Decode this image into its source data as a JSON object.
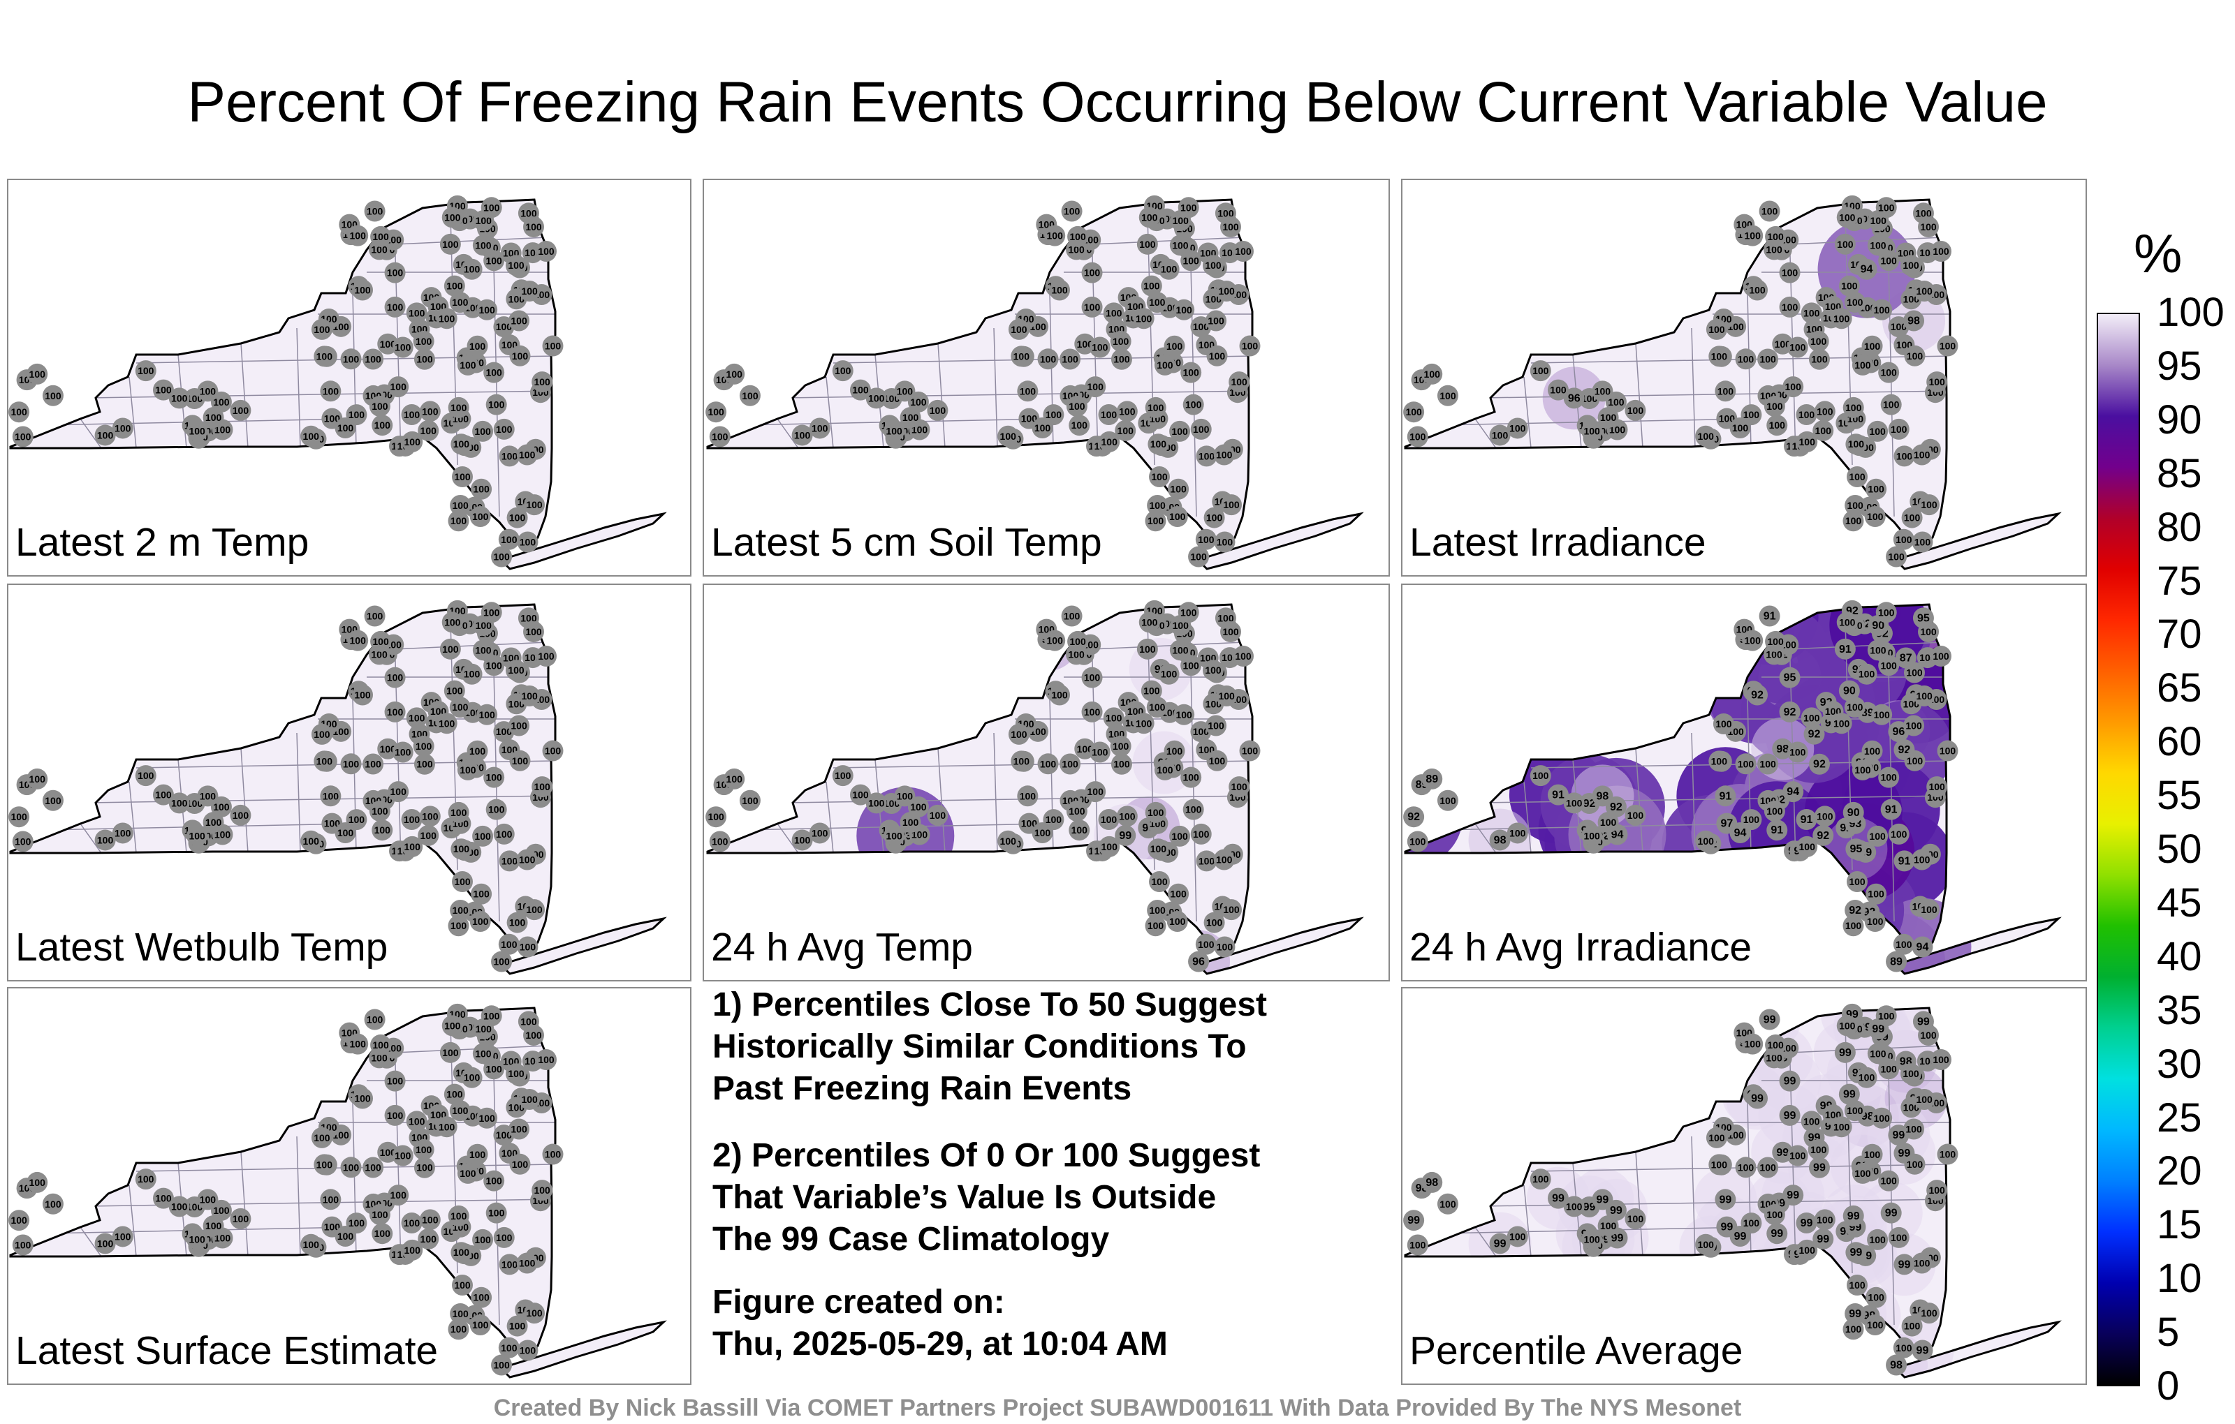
{
  "title": "Percent Of Freezing Rain Events Occurring Below Current Variable Value",
  "footer": "Created By Nick Bassill Via COMET Partners Project SUBAWD001611 With Data Provided By The NYS Mesonet",
  "notes": {
    "note1": "1) Percentiles Close To 50 Suggest\nHistorically Similar Conditions To\nPast Freezing Rain Events",
    "note2": "2) Percentiles Of 0 Or 100 Suggest\nThat Variable’s Value Is Outside\nThe 99 Case Climatology",
    "created": "Figure created on:\nThu, 2025-05-29, at 10:04 AM"
  },
  "colorbar": {
    "unit": "%",
    "ticks": [
      "0",
      "5",
      "10",
      "15",
      "20",
      "25",
      "30",
      "35",
      "40",
      "45",
      "50",
      "55",
      "60",
      "65",
      "70",
      "75",
      "80",
      "85",
      "90",
      "95",
      "100"
    ],
    "colors": [
      "#000000",
      "#08005a",
      "#0000b0",
      "#0030ff",
      "#0080ff",
      "#00b8ff",
      "#00e0e0",
      "#00d090",
      "#00b030",
      "#20c000",
      "#90e000",
      "#e8f000",
      "#ffd800",
      "#ff9a00",
      "#ff6000",
      "#ff2800",
      "#e00000",
      "#b0002a",
      "#72008c",
      "#4a0fa0",
      "#a888c8",
      "#f3eef8"
    ]
  },
  "chart_data": [
    {
      "type": "heatmap",
      "title": "Latest 2 m Temp",
      "scale": [
        0,
        100
      ],
      "station_values": [
        100,
        100,
        100,
        100,
        100,
        100,
        100,
        100,
        100,
        100,
        100,
        100,
        100,
        100,
        100,
        100,
        100,
        100,
        100,
        100,
        100,
        100,
        100,
        100,
        100,
        100,
        100,
        100,
        100,
        100,
        100,
        100,
        100,
        100,
        100,
        100,
        100,
        100,
        100,
        100,
        100,
        100,
        100,
        100,
        100,
        100,
        100,
        100,
        100,
        100,
        100,
        100,
        100,
        100,
        100,
        100,
        100,
        100,
        100,
        100,
        100,
        100,
        100,
        100,
        100,
        100,
        100,
        100,
        100,
        100,
        100,
        100,
        100,
        100,
        100,
        100,
        100,
        100,
        100,
        100,
        100,
        100,
        100,
        100,
        100,
        100,
        100,
        100,
        100,
        100,
        100,
        100,
        100,
        100,
        100,
        100,
        100,
        100,
        100,
        100,
        100,
        100,
        100,
        100,
        100,
        100,
        100,
        100,
        100,
        100,
        100,
        100,
        100,
        100,
        100,
        100,
        100,
        100,
        100,
        100,
        100,
        100,
        100,
        100,
        100,
        100,
        100,
        100,
        100,
        100,
        100
      ]
    },
    {
      "type": "heatmap",
      "title": "Latest 5 cm Soil Temp",
      "scale": [
        0,
        100
      ],
      "station_values": [
        100,
        100,
        100,
        100,
        100,
        100,
        100,
        100,
        100,
        100,
        100,
        100,
        100,
        100,
        100,
        100,
        100,
        100,
        100,
        100,
        100,
        100,
        100,
        100,
        100,
        100,
        100,
        100,
        100,
        100,
        100,
        100,
        100,
        100,
        100,
        100,
        100,
        100,
        100,
        100,
        100,
        100,
        100,
        100,
        100,
        100,
        100,
        100,
        100,
        100,
        100,
        100,
        100,
        100,
        100,
        100,
        100,
        100,
        100,
        100,
        100,
        100,
        100,
        100,
        100,
        100,
        100,
        100,
        100,
        100,
        100,
        100,
        100,
        100,
        100,
        100,
        100,
        100,
        100,
        100,
        100,
        100,
        100,
        100,
        100,
        100,
        100,
        100,
        100,
        100,
        100,
        100,
        100,
        100,
        100,
        100,
        100,
        100,
        100,
        100,
        100,
        100,
        100,
        100,
        100,
        100,
        100,
        100,
        100,
        100,
        100,
        100,
        100,
        100,
        100,
        100,
        100,
        100,
        100,
        100,
        100,
        100,
        100,
        100,
        100,
        100,
        100,
        100,
        100,
        100,
        100
      ]
    },
    {
      "type": "heatmap",
      "title": "Latest Irradiance",
      "scale": [
        0,
        100
      ],
      "station_values": [
        100,
        100,
        100,
        100,
        100,
        100,
        100,
        100,
        100,
        100,
        100,
        100,
        100,
        100,
        100,
        100,
        100,
        100,
        100,
        100,
        100,
        100,
        100,
        100,
        100,
        100,
        100,
        100,
        100,
        100,
        100,
        100,
        100,
        100,
        100,
        100,
        100,
        100,
        100,
        100,
        100,
        100,
        100,
        100,
        100,
        100,
        100,
        100,
        100,
        100,
        100,
        100,
        100,
        100,
        100,
        100,
        100,
        100,
        100,
        100,
        100,
        100,
        100,
        100,
        100,
        100,
        100,
        100,
        100,
        100,
        100,
        100,
        100,
        100,
        100,
        100,
        100,
        100,
        100,
        100,
        100,
        100,
        100,
        100,
        100,
        100,
        100,
        100,
        96,
        98,
        94,
        100,
        100,
        100,
        100,
        100,
        100,
        100,
        100,
        100,
        100,
        100,
        100,
        100,
        100,
        100,
        100,
        100,
        100,
        100,
        100,
        100,
        100,
        100,
        100,
        100,
        100,
        100,
        100,
        100,
        100,
        100,
        100,
        100,
        100,
        100,
        100,
        100,
        100,
        100,
        100
      ]
    },
    {
      "type": "heatmap",
      "title": "Latest Wetbulb Temp",
      "scale": [
        0,
        100
      ],
      "station_values": [
        100,
        100,
        100,
        100,
        100,
        100,
        100,
        100,
        100,
        100,
        100,
        100,
        100,
        100,
        100,
        100,
        100,
        100,
        100,
        100,
        100,
        100,
        100,
        100,
        100,
        100,
        100,
        100,
        100,
        100,
        100,
        100,
        100,
        100,
        100,
        100,
        100,
        100,
        100,
        100,
        100,
        100,
        100,
        100,
        100,
        100,
        100,
        100,
        100,
        100,
        100,
        100,
        100,
        100,
        100,
        100,
        100,
        100,
        100,
        100,
        100,
        100,
        100,
        100,
        100,
        100,
        100,
        100,
        100,
        100,
        100,
        100,
        100,
        100,
        100,
        100,
        100,
        100,
        100,
        100,
        100,
        100,
        100,
        100,
        100,
        100,
        100,
        100,
        100,
        100,
        100,
        100,
        100,
        100,
        100,
        100,
        100,
        100,
        100,
        100,
        100,
        100,
        100,
        100,
        100,
        100,
        100,
        100,
        100,
        100,
        100,
        100,
        100,
        100,
        100,
        100,
        100,
        100,
        100,
        100,
        100,
        100,
        100,
        100,
        100,
        100,
        100,
        100,
        100,
        100,
        100
      ]
    },
    {
      "type": "heatmap",
      "title": "24 h Avg Temp",
      "scale": [
        0,
        100
      ],
      "station_values": [
        100,
        100,
        100,
        100,
        100,
        100,
        100,
        100,
        100,
        100,
        100,
        99,
        100,
        100,
        100,
        100,
        100,
        100,
        96,
        96,
        96,
        93,
        100,
        99,
        100,
        99,
        100,
        100,
        100,
        100,
        100,
        100,
        100,
        100,
        100,
        100,
        100,
        100,
        100,
        100,
        100,
        100,
        100,
        100,
        100,
        100,
        100,
        100,
        100,
        100,
        100,
        100,
        100,
        100,
        100,
        100,
        100,
        100,
        100,
        100,
        100,
        100,
        100,
        100,
        100,
        100,
        100,
        100,
        100,
        100,
        100,
        100,
        100,
        100,
        100,
        100,
        100,
        100,
        100,
        100,
        100,
        100,
        100,
        100,
        100,
        100,
        100,
        100,
        100,
        100,
        100,
        100,
        100,
        100,
        100,
        100,
        100,
        100,
        100,
        100,
        100,
        100,
        100,
        100,
        100,
        100,
        100,
        100,
        100,
        100,
        100,
        100,
        100,
        100,
        100,
        100,
        100,
        100,
        100,
        100,
        100,
        100,
        100,
        100,
        100,
        100,
        100,
        100,
        100,
        100,
        100
      ]
    },
    {
      "type": "heatmap",
      "title": "24 h Avg Irradiance",
      "scale": [
        0,
        100
      ],
      "station_values": [
        91,
        91,
        92,
        92,
        92,
        91,
        92,
        91,
        92,
        92,
        90,
        89,
        87,
        89,
        89,
        90,
        91,
        91,
        92,
        92,
        89,
        92,
        92,
        92,
        92,
        92,
        92,
        93,
        97,
        94,
        96,
        94,
        95,
        94,
        94,
        93,
        92,
        92,
        92,
        92,
        92,
        95,
        92,
        92,
        92,
        92,
        91,
        92,
        90,
        89,
        91,
        89,
        91,
        90,
        92,
        92,
        94,
        95,
        98,
        98,
        98,
        100,
        100,
        100,
        100,
        100,
        100,
        100,
        100,
        100,
        100,
        100,
        100,
        100,
        100,
        100,
        100,
        100,
        100,
        100,
        100,
        100,
        100,
        100,
        100,
        100,
        100,
        100,
        100,
        100,
        100,
        100,
        100,
        100,
        100,
        100,
        100,
        100,
        100,
        100,
        100,
        100,
        100,
        100,
        100,
        100,
        100,
        100,
        100,
        100,
        100,
        100,
        100,
        100,
        100,
        100,
        100,
        100,
        100,
        100,
        100,
        100,
        100,
        100,
        100,
        100,
        100
      ]
    },
    {
      "type": "heatmap",
      "title": "Latest Surface Estimate",
      "scale": [
        0,
        100
      ],
      "station_values": [
        100,
        100,
        100,
        100,
        100,
        100,
        100,
        100,
        100,
        100,
        100,
        100,
        100,
        100,
        100,
        100,
        100,
        100,
        100,
        100,
        100,
        100,
        100,
        100,
        100,
        100,
        100,
        100,
        100,
        100,
        100,
        100,
        100,
        100,
        100,
        100,
        100,
        100,
        100,
        100,
        100,
        100,
        100,
        100,
        100,
        100,
        100,
        100,
        100,
        100,
        100,
        100,
        100,
        100,
        100,
        100,
        100,
        100,
        100,
        100,
        100,
        100,
        100,
        100,
        100,
        100,
        100,
        100,
        100,
        100,
        100,
        100,
        100,
        100,
        100,
        100,
        100,
        100,
        100,
        100,
        100,
        100,
        100,
        100,
        100,
        100,
        100,
        100,
        100,
        100,
        100,
        100,
        100,
        100,
        100,
        100,
        100,
        100,
        100,
        100,
        100,
        100,
        100,
        100,
        100,
        100,
        100,
        100,
        100,
        100,
        100,
        100,
        100,
        100,
        100,
        100,
        100,
        100,
        100,
        100,
        100,
        100,
        100,
        100,
        100,
        100,
        100,
        100,
        100,
        100,
        100
      ]
    },
    {
      "type": "heatmap",
      "title": "Percentile Average",
      "scale": [
        0,
        100
      ],
      "station_values": [
        99,
        99,
        99,
        99,
        99,
        99,
        99,
        99,
        99,
        99,
        99,
        99,
        98,
        98,
        98,
        97,
        99,
        99,
        99,
        99,
        98,
        99,
        99,
        99,
        99,
        99,
        99,
        99,
        99,
        99,
        99,
        99,
        99,
        99,
        99,
        99,
        99,
        99,
        99,
        99,
        99,
        99,
        99,
        99,
        99,
        99,
        99,
        99,
        99,
        98,
        99,
        99,
        99,
        99,
        99,
        99,
        99,
        99,
        99,
        99,
        99,
        100,
        100,
        100,
        100,
        100,
        100,
        100,
        100,
        100,
        100,
        100,
        100,
        100,
        100,
        100,
        100,
        100,
        100,
        100,
        100,
        100,
        100,
        100,
        100,
        100,
        100,
        100,
        100,
        100,
        100,
        100,
        100,
        100,
        100,
        100,
        100,
        100,
        100,
        100,
        100,
        100,
        100,
        100,
        100,
        100,
        100,
        100,
        100,
        100,
        100,
        100,
        100,
        100,
        100,
        100,
        100,
        100,
        100,
        100,
        100,
        100,
        100,
        100,
        100,
        100,
        100,
        100,
        100,
        100,
        100
      ]
    }
  ]
}
